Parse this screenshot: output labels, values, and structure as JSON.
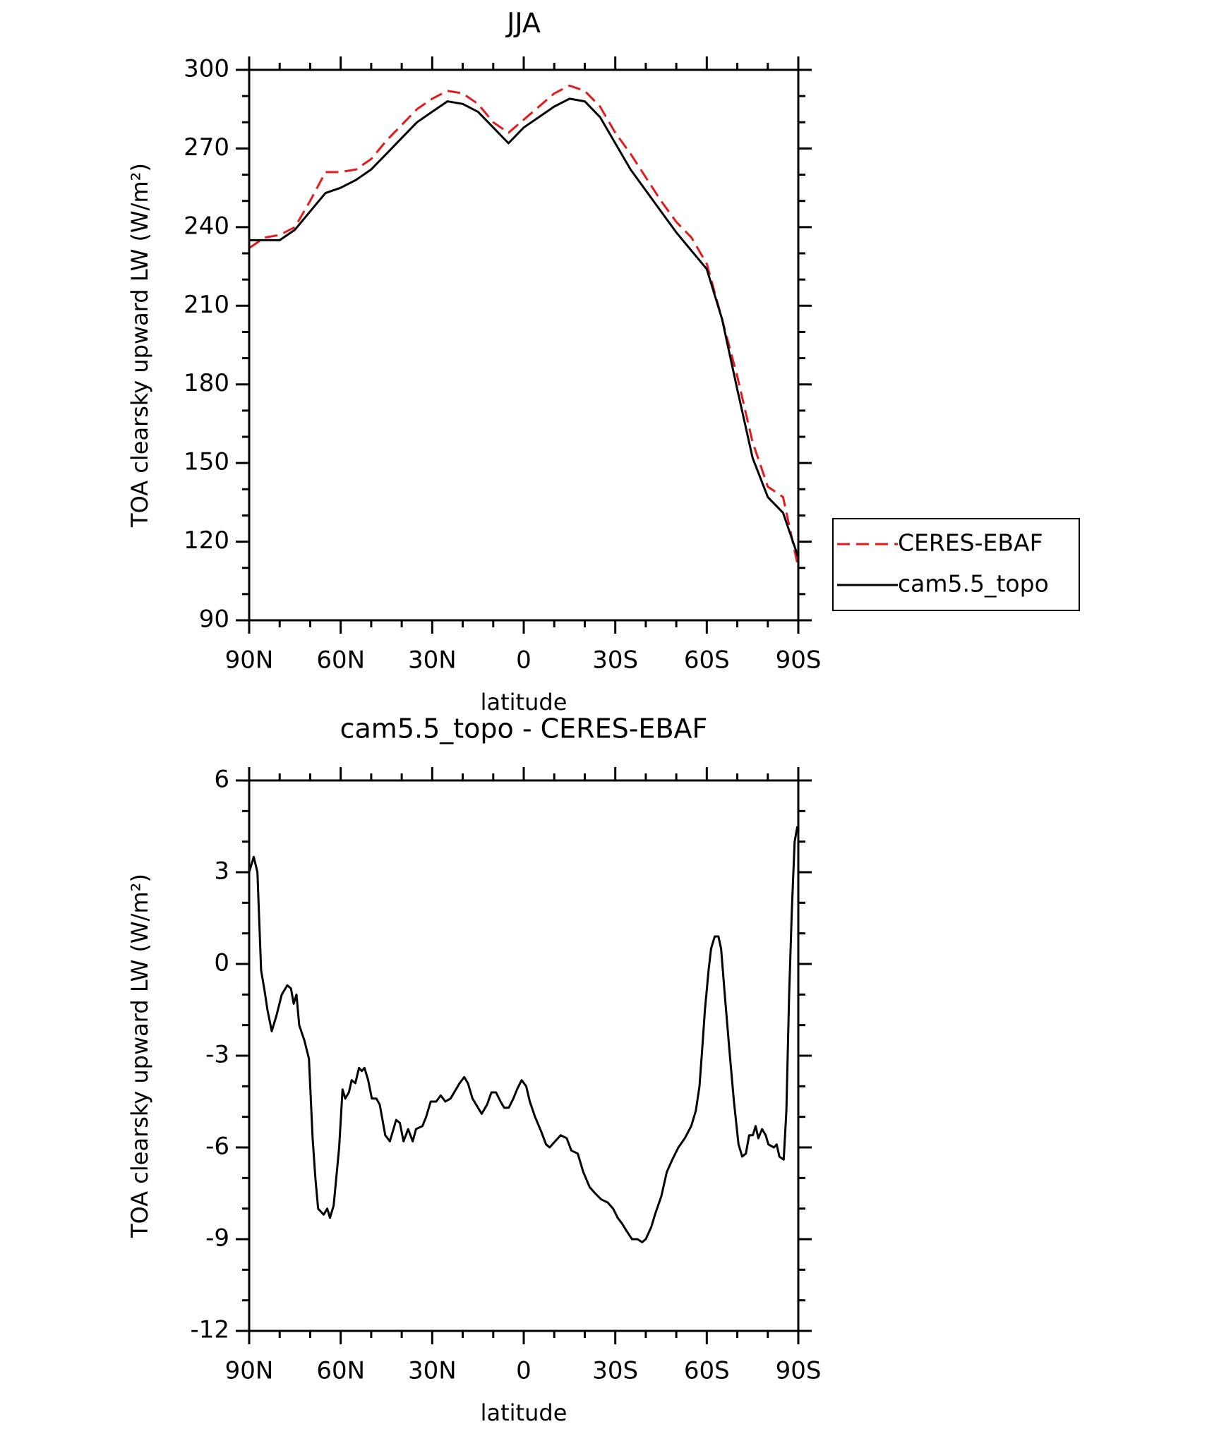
{
  "chart_data": [
    {
      "type": "line",
      "title": "JJA",
      "xlabel": "latitude",
      "ylabel": "TOA clearsky upward LW (W/m²)",
      "x": [
        90,
        85,
        80,
        75,
        70,
        65,
        60,
        55,
        50,
        45,
        40,
        35,
        30,
        25,
        20,
        15,
        10,
        5,
        0,
        -5,
        -10,
        -15,
        -20,
        -25,
        -30,
        -35,
        -40,
        -45,
        -50,
        -55,
        -60,
        -65,
        -70,
        -75,
        -80,
        -85,
        -90
      ],
      "series": [
        {
          "name": "CERES-EBAF",
          "color": "#e8191b",
          "line_style": "dashed",
          "values": [
            232,
            236,
            237,
            240,
            250,
            261,
            261,
            262,
            266,
            273,
            279,
            285,
            289,
            292,
            291,
            287,
            280,
            276,
            281,
            286,
            291,
            294,
            292,
            286,
            276,
            268,
            259,
            250,
            242,
            236,
            226,
            205,
            183,
            158,
            141,
            137,
            110
          ]
        },
        {
          "name": "cam5.5_topo",
          "color": "#000000",
          "line_style": "solid",
          "values": [
            235,
            235,
            235,
            239,
            246,
            253,
            255,
            258,
            262,
            268,
            274,
            280,
            284,
            288,
            287,
            284,
            278,
            272,
            278,
            282,
            286,
            289,
            288,
            282,
            272,
            262,
            254,
            246,
            238,
            231,
            224,
            205,
            178,
            152,
            137,
            131,
            114
          ]
        }
      ],
      "xlim": [
        90,
        -90
      ],
      "xticks": [
        {
          "value": 90,
          "label": "90N"
        },
        {
          "value": 60,
          "label": "60N"
        },
        {
          "value": 30,
          "label": "30N"
        },
        0,
        {
          "value": -30,
          "label": "30S"
        },
        {
          "value": -60,
          "label": "60S"
        },
        {
          "value": -90,
          "label": "90S"
        }
      ],
      "ylim": [
        90,
        300
      ],
      "yticks": [
        90,
        120,
        150,
        180,
        210,
        240,
        270,
        300
      ],
      "legend": "outside-right"
    },
    {
      "type": "line",
      "title": "cam5.5_topo - CERES-EBAF",
      "xlabel": "latitude",
      "ylabel": "TOA clearsky upward LW (W/m²)",
      "x": [
        90,
        88.5,
        87.3,
        86.1,
        84.9,
        84,
        82.6,
        81.1,
        79.3,
        77.5,
        76.3,
        75.4,
        74.5,
        73.6,
        71.9,
        70.4,
        69.2,
        68.3,
        67.4,
        65.6,
        64.4,
        63.5,
        62.3,
        60.5,
        59.4,
        58.5,
        57.3,
        56.4,
        55.2,
        54,
        53.1,
        52.2,
        51,
        49.8,
        48.3,
        47.2,
        45.4,
        43.9,
        41.8,
        40.6,
        39.4,
        37.9,
        36.4,
        35.3,
        33.2,
        32,
        30.5,
        28.7,
        27.2,
        25.7,
        24,
        22.2,
        21,
        19.5,
        18.3,
        16.8,
        15,
        13.8,
        12,
        10.6,
        9.1,
        7.6,
        6.4,
        4.9,
        3.4,
        2.2,
        0.7,
        -0.8,
        -2,
        -3.7,
        -5.8,
        -7.3,
        -8.5,
        -10.3,
        -12.1,
        -14.1,
        -15.6,
        -17.7,
        -19.5,
        -21.6,
        -23.4,
        -25.4,
        -27.5,
        -29.3,
        -30.8,
        -32.3,
        -33.5,
        -35.5,
        -37.3,
        -38.8,
        -40,
        -41.8,
        -43,
        -45.1,
        -46.9,
        -48.7,
        -50.7,
        -52.8,
        -54.9,
        -56.4,
        -57.6,
        -58.5,
        -59.4,
        -60.6,
        -61.4,
        -62.6,
        -63.8,
        -64.7,
        -65.9,
        -67.4,
        -68.9,
        -70.4,
        -71.6,
        -72.8,
        -73.9,
        -75.1,
        -76,
        -76.9,
        -78.1,
        -79.3,
        -80.2,
        -82,
        -82.9,
        -83.8,
        -85.2,
        -86.1,
        -87,
        -87.9,
        -88.8,
        -89.7
      ],
      "series": [
        {
          "name": "cam5.5_topo - CERES-EBAF",
          "color": "#000000",
          "line_style": "solid",
          "values": [
            3,
            3.5,
            3,
            -0.2,
            -0.9,
            -1.5,
            -2.2,
            -1.7,
            -1,
            -0.7,
            -0.8,
            -1.3,
            -1,
            -2,
            -2.5,
            -3.1,
            -5.7,
            -7,
            -8,
            -8.2,
            -8,
            -8.3,
            -7.9,
            -6,
            -4.1,
            -4.4,
            -4.2,
            -3.8,
            -3.9,
            -3.4,
            -3.5,
            -3.4,
            -3.8,
            -4.4,
            -4.4,
            -4.6,
            -5.6,
            -5.8,
            -5.1,
            -5.2,
            -5.8,
            -5.4,
            -5.8,
            -5.4,
            -5.3,
            -5,
            -4.5,
            -4.5,
            -4.3,
            -4.5,
            -4.4,
            -4.1,
            -3.9,
            -3.7,
            -3.9,
            -4.4,
            -4.7,
            -4.9,
            -4.6,
            -4.2,
            -4.2,
            -4.5,
            -4.7,
            -4.7,
            -4.4,
            -4.1,
            -3.8,
            -4,
            -4.5,
            -5,
            -5.5,
            -5.9,
            -6,
            -5.8,
            -5.6,
            -5.7,
            -6.1,
            -6.2,
            -6.8,
            -7.3,
            -7.5,
            -7.7,
            -7.8,
            -8,
            -8.3,
            -8.5,
            -8.7,
            -9,
            -9,
            -9.1,
            -9,
            -8.6,
            -8.2,
            -7.6,
            -6.8,
            -6.4,
            -6,
            -5.7,
            -5.3,
            -4.8,
            -4,
            -2.8,
            -1.5,
            -0.2,
            0.5,
            0.9,
            0.9,
            0.5,
            -1,
            -2.8,
            -4.5,
            -5.9,
            -6.3,
            -6.2,
            -5.6,
            -5.6,
            -5.3,
            -5.7,
            -5.4,
            -5.6,
            -5.9,
            -6,
            -5.9,
            -6.3,
            -6.4,
            -4.8,
            -1,
            1.8,
            4,
            4.5
          ]
        }
      ],
      "xlim": [
        90,
        -90
      ],
      "xticks": [
        {
          "value": 90,
          "label": "90N"
        },
        {
          "value": 60,
          "label": "60N"
        },
        {
          "value": 30,
          "label": "30N"
        },
        0,
        {
          "value": -30,
          "label": "30S"
        },
        {
          "value": -60,
          "label": "60S"
        },
        {
          "value": -90,
          "label": "90S"
        }
      ],
      "ylim": [
        -12,
        6
      ],
      "yticks": [
        -12,
        -9,
        -6,
        -3,
        0,
        3,
        6
      ]
    }
  ]
}
